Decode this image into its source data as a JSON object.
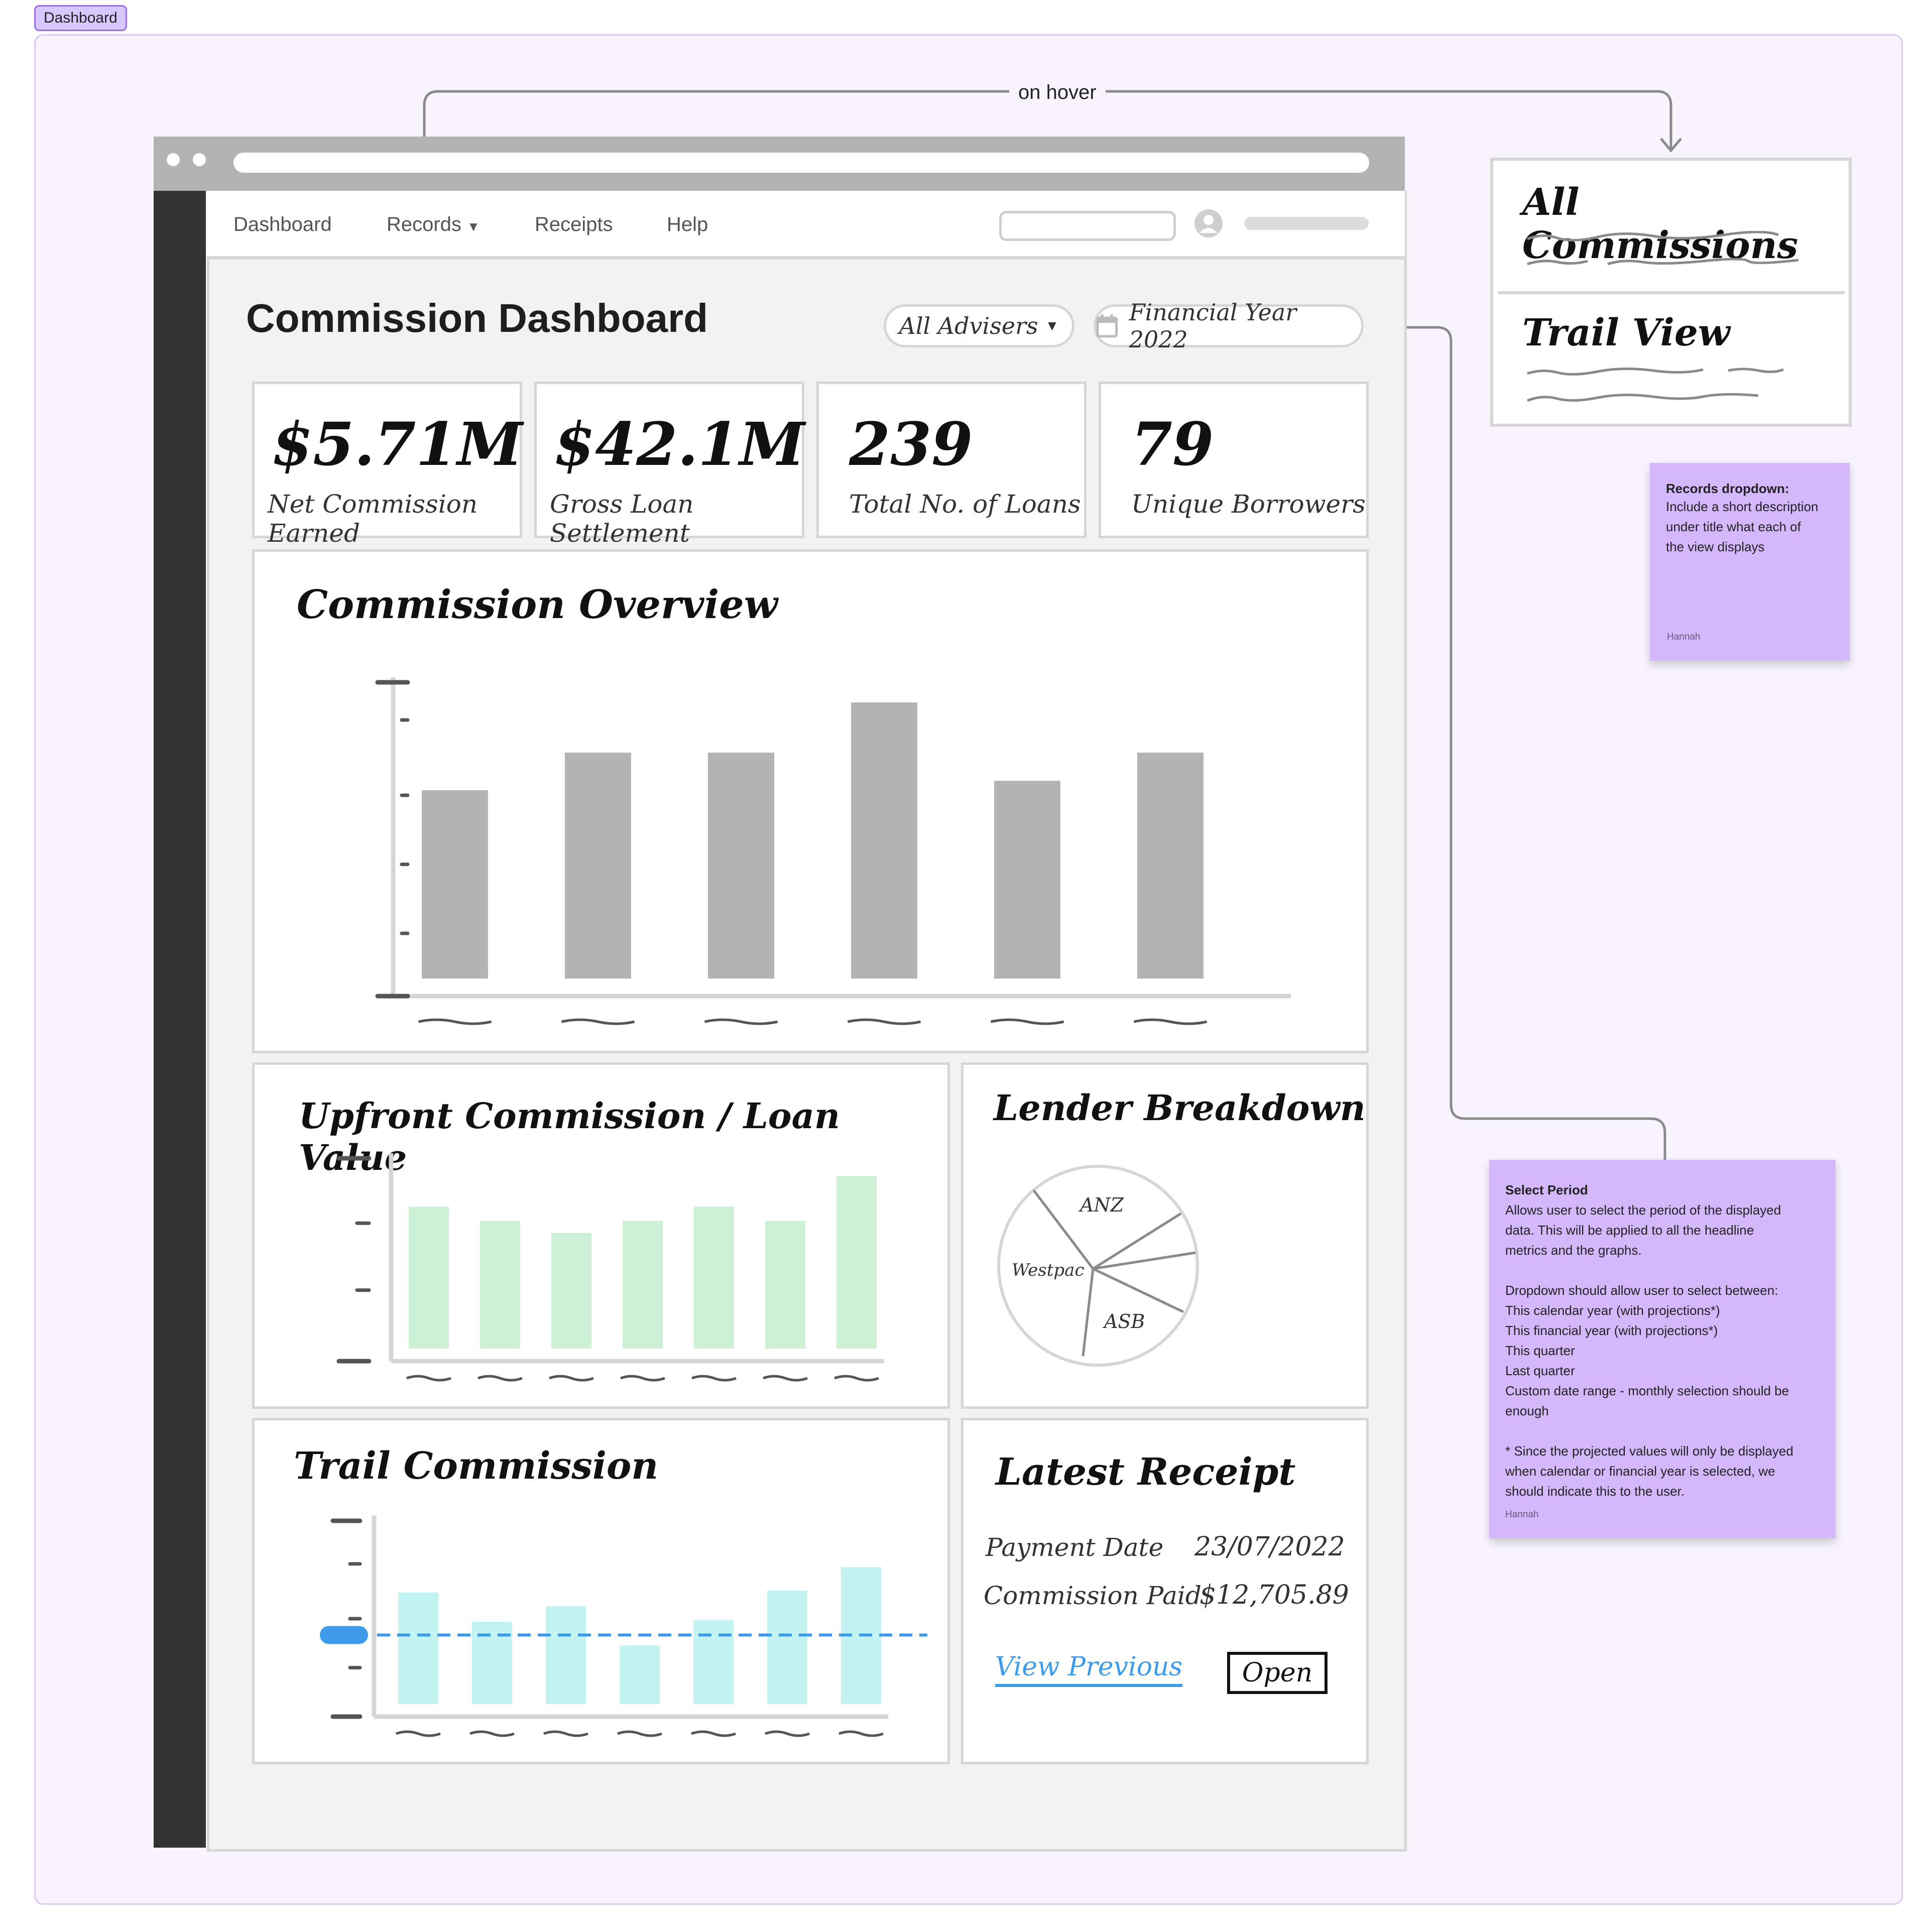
{
  "frame_label": "Dashboard",
  "annotation_on_hover": "on hover",
  "nav": {
    "items": [
      "Dashboard",
      "Records",
      "Receipts",
      "Help"
    ]
  },
  "page": {
    "title": "Commission Dashboard",
    "advisers_select": "All Advisers",
    "year_select": "Financial Year 2022"
  },
  "metrics": [
    {
      "value": "$5.71M",
      "label": "Net Commission Earned"
    },
    {
      "value": "$42.1M",
      "label": "Gross Loan Settlement"
    },
    {
      "value": "239",
      "label": "Total No. of Loans"
    },
    {
      "value": "79",
      "label": "Unique Borrowers"
    }
  ],
  "records_dropdown": {
    "options": [
      "All Commissions",
      "Trail View"
    ]
  },
  "latest_receipt": {
    "title": "Latest Receipt",
    "payment_date_label": "Payment Date",
    "payment_date": "23/07/2022",
    "commission_paid_label": "Commission Paid",
    "commission_paid": "$12,705.89",
    "view_previous": "View Previous",
    "open_button": "Open"
  },
  "sticky_records": {
    "title": "Records dropdown:",
    "lines": [
      "Include a short description",
      "under title what each of",
      "the view displays"
    ],
    "author": "Hannah"
  },
  "sticky_period": {
    "title": "Select Period",
    "lines": [
      "Allows user to select the period of the displayed",
      "data. This will be applied to all the headline",
      "metrics and the graphs.",
      "",
      "Dropdown should allow user to select between:",
      "This calendar year (with projections*)",
      "This financial year (with projections*)",
      "This quarter",
      "Last quarter",
      "Custom date range - monthly selection should be",
      "enough",
      "",
      "* Since the projected values will only be displayed",
      "when calendar or financial year is selected, we",
      "should indicate this to the user."
    ],
    "author": "Hannah"
  },
  "colors": {
    "bar_gray": "#b3b3b3",
    "bar_green": "#cdf1d5",
    "bar_cyan": "#c4f4f2",
    "accent_blue": "#3d9be9",
    "sticky": "#d5b8fb",
    "rail": "#333333"
  },
  "chart_data": [
    {
      "type": "bar",
      "title": "Commission Overview",
      "values": [
        0.6,
        0.72,
        0.72,
        0.88,
        0.63,
        0.72
      ]
    },
    {
      "type": "bar",
      "title": "Upfront Commission / Loan Value",
      "values": [
        0.7,
        0.63,
        0.57,
        0.63,
        0.7,
        0.63,
        0.85
      ]
    },
    {
      "type": "pie",
      "title": "Lender Breakdown",
      "slices": [
        "ANZ",
        "",
        "",
        "ASB",
        "Westpac"
      ]
    },
    {
      "type": "bar",
      "title": "Trail Commission",
      "values": [
        0.57,
        0.42,
        0.5,
        0.3,
        0.43,
        0.58,
        0.7
      ],
      "reference_line": 0.55
    }
  ]
}
